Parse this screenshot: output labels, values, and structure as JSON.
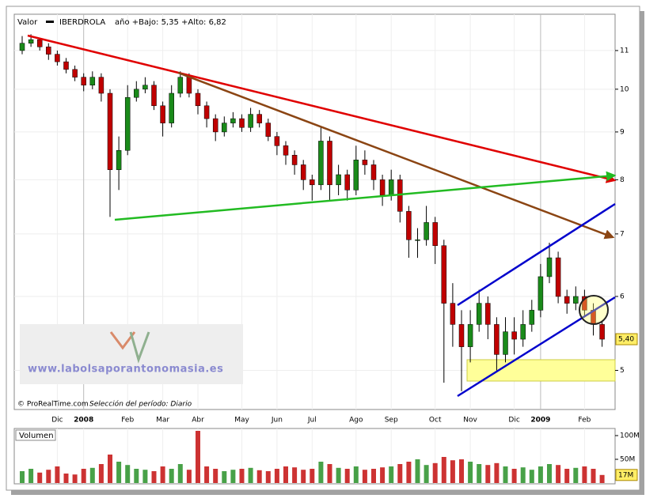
{
  "chart_data": {
    "type": "candlestick",
    "label": "Valor",
    "symbol": "IBERDROLA",
    "subtitle": "año +Bajo: 5,35 +Alto: 6,82",
    "source": "© ProRealTime.com",
    "period": "Selección del período: Diario",
    "watermark": "www.labolsaporantonomasia.es",
    "log_scale": true,
    "grid": true,
    "up_color": "#1a8a1a",
    "down_color": "#c00000",
    "ylim": [
      4.63,
      12.03
    ],
    "yticks": [
      5,
      6,
      7,
      8,
      9,
      10,
      11
    ],
    "last_price": {
      "value": 5.4,
      "label": "5,40"
    },
    "categories": [
      null,
      null,
      null,
      null,
      "Dic",
      null,
      null,
      "2008",
      null,
      null,
      null,
      null,
      "Feb",
      null,
      null,
      null,
      "Mar",
      null,
      null,
      null,
      "Abr",
      null,
      null,
      null,
      null,
      "May",
      null,
      null,
      null,
      "Jun",
      null,
      null,
      null,
      "Jul",
      null,
      null,
      null,
      null,
      "Ago",
      null,
      null,
      null,
      "Sep",
      null,
      null,
      null,
      null,
      "Oct",
      null,
      null,
      null,
      "Nov",
      null,
      null,
      null,
      null,
      "Dic",
      null,
      null,
      "2009",
      null,
      null,
      null,
      null,
      "Feb",
      null,
      null
    ],
    "open": [
      11.0,
      11.2,
      11.3,
      11.1,
      10.9,
      10.7,
      10.5,
      10.3,
      10.1,
      10.3,
      9.9,
      8.2,
      8.6,
      9.8,
      10.0,
      10.1,
      9.6,
      9.2,
      9.9,
      10.3,
      9.9,
      9.6,
      9.3,
      9.0,
      9.2,
      9.3,
      9.1,
      9.4,
      9.2,
      8.9,
      8.7,
      8.5,
      8.3,
      8.0,
      7.9,
      8.8,
      7.9,
      8.1,
      7.8,
      8.4,
      8.3,
      8.0,
      7.7,
      8.0,
      7.4,
      6.9,
      6.9,
      7.2,
      6.8,
      5.9,
      5.6,
      5.3,
      5.6,
      5.9,
      5.6,
      5.2,
      5.5,
      5.4,
      5.6,
      5.8,
      6.3,
      6.6,
      6.0,
      5.9,
      6.0,
      5.8,
      5.6
    ],
    "high": [
      11.4,
      11.45,
      11.35,
      11.2,
      11.0,
      10.8,
      10.6,
      10.4,
      10.45,
      10.4,
      10.0,
      8.9,
      10.1,
      10.2,
      10.3,
      10.2,
      9.7,
      10.1,
      10.45,
      10.4,
      10.0,
      9.7,
      9.4,
      9.35,
      9.45,
      9.4,
      9.55,
      9.5,
      9.3,
      9.0,
      8.8,
      8.6,
      8.4,
      8.1,
      9.1,
      8.9,
      8.3,
      8.2,
      8.7,
      8.6,
      8.4,
      8.1,
      8.2,
      8.1,
      7.5,
      7.1,
      7.5,
      7.3,
      6.9,
      6.2,
      5.8,
      5.8,
      6.1,
      6.0,
      5.7,
      5.7,
      5.7,
      5.8,
      5.95,
      6.5,
      6.85,
      6.7,
      6.1,
      6.15,
      6.1,
      5.9,
      5.65
    ],
    "low": [
      10.9,
      11.1,
      11.0,
      10.75,
      10.6,
      10.4,
      10.2,
      9.95,
      10.0,
      9.7,
      7.3,
      7.8,
      8.5,
      9.7,
      9.9,
      9.5,
      8.9,
      9.1,
      9.8,
      9.8,
      9.4,
      9.1,
      8.8,
      8.9,
      9.1,
      9.0,
      9.0,
      9.1,
      8.8,
      8.5,
      8.3,
      8.1,
      7.8,
      7.6,
      7.8,
      7.6,
      7.7,
      7.6,
      7.7,
      8.1,
      7.8,
      7.5,
      7.6,
      7.2,
      6.6,
      6.6,
      6.8,
      6.5,
      4.85,
      5.3,
      4.75,
      5.1,
      5.5,
      5.4,
      5.0,
      5.1,
      5.2,
      5.3,
      5.5,
      5.7,
      6.2,
      5.9,
      5.75,
      5.8,
      5.7,
      5.45,
      5.3
    ],
    "close": [
      11.2,
      11.3,
      11.1,
      10.9,
      10.7,
      10.5,
      10.3,
      10.1,
      10.3,
      9.9,
      8.2,
      8.6,
      9.8,
      10.0,
      10.1,
      9.6,
      9.2,
      9.9,
      10.3,
      9.9,
      9.6,
      9.3,
      9.0,
      9.2,
      9.3,
      9.1,
      9.4,
      9.2,
      8.9,
      8.7,
      8.5,
      8.3,
      8.0,
      7.9,
      8.8,
      7.9,
      8.1,
      7.8,
      8.4,
      8.3,
      8.0,
      7.7,
      8.0,
      7.4,
      6.9,
      6.9,
      7.2,
      6.8,
      5.9,
      5.6,
      5.3,
      5.6,
      5.9,
      5.6,
      5.2,
      5.5,
      5.4,
      5.6,
      5.8,
      6.3,
      6.6,
      6.0,
      5.9,
      6.0,
      5.8,
      5.6,
      5.4
    ],
    "volume": {
      "title": "Volumen",
      "ylim": [
        0,
        115
      ],
      "yticks": [
        {
          "value": 100,
          "label": "100M"
        },
        {
          "value": 50,
          "label": "50M"
        }
      ],
      "last": {
        "value": 17,
        "label": "17M"
      },
      "values": [
        25,
        30,
        22,
        28,
        35,
        20,
        18,
        30,
        32,
        40,
        60,
        45,
        38,
        30,
        28,
        25,
        35,
        30,
        40,
        28,
        110,
        35,
        30,
        25,
        28,
        30,
        32,
        27,
        25,
        30,
        35,
        33,
        28,
        30,
        45,
        40,
        32,
        30,
        35,
        28,
        30,
        33,
        35,
        40,
        45,
        50,
        38,
        42,
        55,
        48,
        50,
        45,
        40,
        38,
        42,
        35,
        30,
        33,
        28,
        35,
        40,
        38,
        30,
        32,
        35,
        30,
        17
      ]
    }
  }
}
